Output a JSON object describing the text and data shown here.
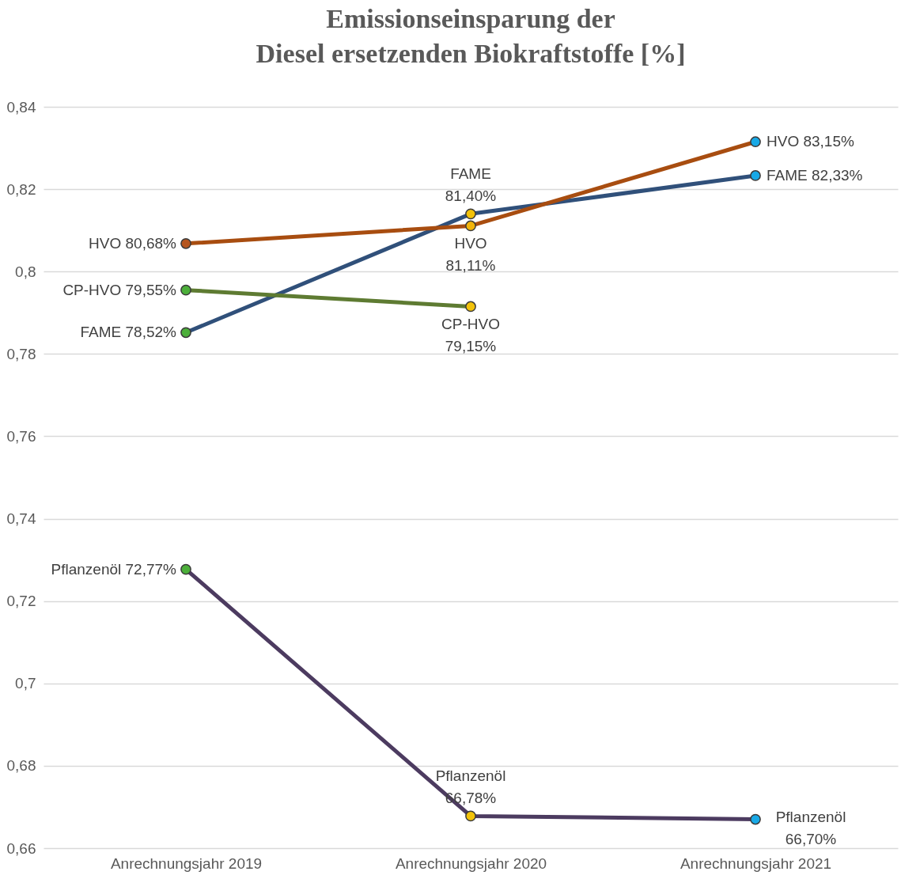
{
  "chart_data": {
    "type": "line",
    "title": [
      "Emissionseinsparung der",
      "Diesel ersetzenden Biokraftstoffe [%]"
    ],
    "categories": [
      "Anrechnungsjahr 2019",
      "Anrechnungsjahr 2020",
      "Anrechnungsjahr 2021"
    ],
    "series": [
      {
        "name": "FAME",
        "color": "#30507a",
        "values": [
          0.7852,
          0.814,
          0.8233
        ],
        "value_labels": [
          "78,52%",
          "81,40%",
          "82,33%"
        ],
        "colors": [
          "#4caf3a",
          "#f2c20a",
          "#18a9e6"
        ]
      },
      {
        "name": "HVO",
        "color": "#a84d10",
        "values": [
          0.8068,
          0.8111,
          0.8315
        ],
        "value_labels": [
          "80,68%",
          "81,11%",
          "83,15%"
        ],
        "colors": [
          "#b5551e",
          "#f2b40a",
          "#18a9e6"
        ]
      },
      {
        "name": "CP-HVO",
        "color": "#5e7b32",
        "values": [
          0.7955,
          0.7915,
          null
        ],
        "value_labels": [
          "79,55%",
          "79,15%",
          null
        ],
        "colors": [
          "#4caf3a",
          "#f2c20a",
          null
        ]
      },
      {
        "name": "Pflanzenöl",
        "color": "#4c3b60",
        "values": [
          0.7277,
          0.6678,
          0.667
        ],
        "value_labels": [
          "72,77%",
          "66,78%",
          "66,70%"
        ],
        "colors": [
          "#4caf3a",
          "#f2c20a",
          "#18a9e6"
        ]
      }
    ],
    "ylim": [
      0.66,
      0.84
    ],
    "yticks": [
      {
        "value": 0.66,
        "label": "0,66"
      },
      {
        "value": 0.68,
        "label": "0,68"
      },
      {
        "value": 0.7,
        "label": "0,7"
      },
      {
        "value": 0.72,
        "label": "0,72"
      },
      {
        "value": 0.74,
        "label": "0,74"
      },
      {
        "value": 0.76,
        "label": "0,76"
      },
      {
        "value": 0.78,
        "label": "0,78"
      },
      {
        "value": 0.8,
        "label": "0,8"
      },
      {
        "value": 0.82,
        "label": "0,82"
      },
      {
        "value": 0.84,
        "label": "0,84"
      }
    ],
    "grid": "y",
    "marker": "circle",
    "line_style": "solid"
  }
}
